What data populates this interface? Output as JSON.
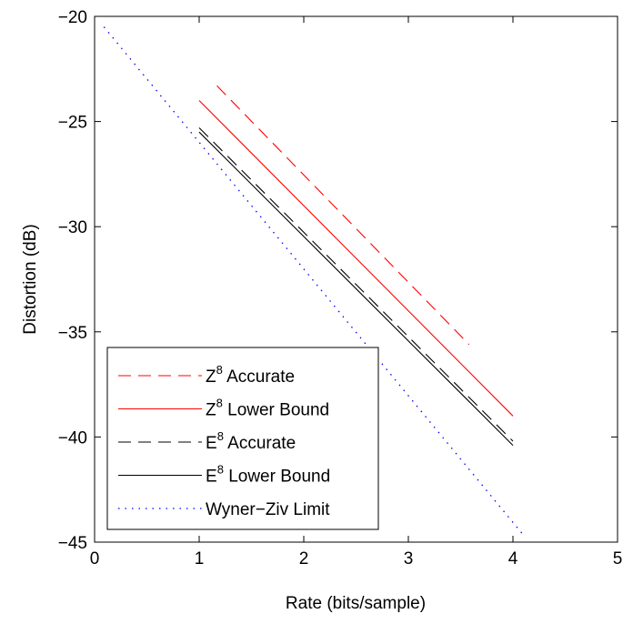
{
  "chart_data": {
    "type": "line",
    "title": "",
    "xlabel": "Rate (bits/sample)",
    "ylabel": "Distortion (dB)",
    "xlim": [
      0,
      5
    ],
    "ylim": [
      -45,
      -20
    ],
    "xticks": [
      0,
      1,
      2,
      3,
      4,
      5
    ],
    "yticks": [
      -45,
      -40,
      -35,
      -30,
      -25,
      -20
    ],
    "xtick_labels": [
      "0",
      "1",
      "2",
      "3",
      "4",
      "5"
    ],
    "ytick_labels": [
      "−45",
      "−40",
      "−35",
      "−30",
      "−25",
      "−20"
    ],
    "grid": false,
    "legend_position": "bottom-left",
    "series": [
      {
        "base": "Z",
        "exp": "8",
        "suffix": "Accurate",
        "color": "#ff0000",
        "dash": "dashed",
        "x": [
          1.17,
          3.58
        ],
        "y": [
          -23.3,
          -35.6
        ]
      },
      {
        "base": "Z",
        "exp": "8",
        "suffix": "Lower Bound",
        "color": "#ff0000",
        "dash": "solid",
        "x": [
          1.0,
          4.0
        ],
        "y": [
          -24.0,
          -39.0
        ]
      },
      {
        "base": "E",
        "exp": "8",
        "suffix": "Accurate",
        "color": "#000000",
        "dash": "dashed",
        "x": [
          1.0,
          4.0
        ],
        "y": [
          -25.3,
          -40.2
        ]
      },
      {
        "base": "E",
        "exp": "8",
        "suffix": "Lower Bound",
        "color": "#000000",
        "dash": "solid",
        "x": [
          1.0,
          4.0
        ],
        "y": [
          -25.5,
          -40.4
        ]
      },
      {
        "base": "Wyner−Ziv Limit",
        "exp": "",
        "suffix": "",
        "color": "#0000ff",
        "dash": "dotted",
        "x": [
          0.09,
          4.09
        ],
        "y": [
          -20.5,
          -44.6
        ]
      }
    ]
  }
}
